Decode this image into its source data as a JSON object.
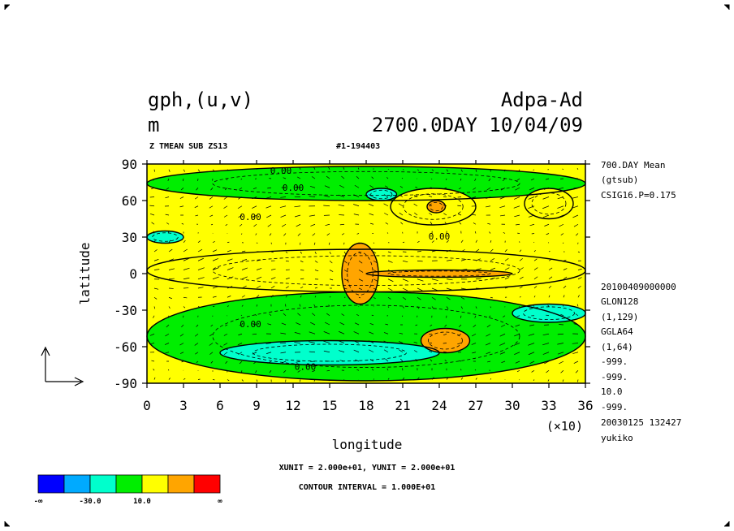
{
  "header": {
    "variable": "gph,(u,v)",
    "unit": "m",
    "experiment": "Adpa-Ad",
    "date_line": "2700.0DAY 10/04/09",
    "subtitle": "Z TMEAN SUB ZS13",
    "run_id": "#1-194403"
  },
  "side_info": {
    "top": [
      "700.DAY Mean",
      "(gtsub)",
      "CSIG16.P=0.175"
    ],
    "bottom": [
      "20100409000000",
      "GLON128",
      "(1,129)",
      "GGLA64",
      "(1,64)",
      "-999.",
      "-999.",
      "10.0",
      "-999.",
      "20030125 132427",
      "yukiko"
    ]
  },
  "footer": {
    "units_line": "XUNIT = 2.000e+01, YUNIT = 2.000e+01",
    "contour_line": "CONTOUR INTERVAL = 1.000E+01"
  },
  "colorbar": {
    "colors": [
      "#0000ff",
      "#00aaff",
      "#00ffcc",
      "#00ee00",
      "#ffff00",
      "#ffa500",
      "#ff0000"
    ],
    "labels": [
      "-∞",
      "-30.0",
      "10.0",
      "∞"
    ]
  },
  "chart_data": {
    "type": "heatmap",
    "xlabel": "longitude",
    "ylabel": "latitude",
    "x_scale_note": "(×10)",
    "xlim": [
      0,
      36
    ],
    "ylim": [
      -90,
      90
    ],
    "x_ticks": [
      0,
      3,
      6,
      9,
      12,
      15,
      18,
      21,
      24,
      27,
      30,
      33,
      36
    ],
    "y_ticks": [
      90,
      60,
      30,
      0,
      -30,
      -60,
      -90
    ],
    "contour_labels": [
      "0.00",
      "0.00",
      "0.00",
      "0.00",
      "0.00",
      "0.00"
    ],
    "levels": [
      "-20",
      "-10",
      "0",
      "10",
      "20"
    ],
    "level_colors": [
      "#00ffcc",
      "#00ee00",
      "#ffff00",
      "#ffff00",
      "#ffa500"
    ],
    "regions": [
      {
        "level": "-10",
        "lon": [
          0,
          36
        ],
        "lat": [
          60,
          88
        ]
      },
      {
        "level": "-10",
        "lon": [
          0,
          36
        ],
        "lat": [
          -88,
          -15
        ]
      },
      {
        "level": "-20",
        "lon": [
          0,
          3
        ],
        "lat": [
          25,
          35
        ]
      },
      {
        "level": "-20",
        "lon": [
          18,
          20.5
        ],
        "lat": [
          60,
          70
        ]
      },
      {
        "level": "-20",
        "lon": [
          6,
          24
        ],
        "lat": [
          -75,
          -55
        ]
      },
      {
        "level": "-20",
        "lon": [
          30,
          36
        ],
        "lat": [
          -40,
          -25
        ]
      },
      {
        "level": "0",
        "lon": [
          0,
          36
        ],
        "lat": [
          -15,
          20
        ]
      },
      {
        "level": "0",
        "lon": [
          20,
          27
        ],
        "lat": [
          40,
          70
        ]
      },
      {
        "level": "0",
        "lon": [
          31,
          35
        ],
        "lat": [
          45,
          70
        ]
      },
      {
        "level": "20",
        "lon": [
          16,
          19
        ],
        "lat": [
          -25,
          25
        ]
      },
      {
        "level": "20",
        "lon": [
          18,
          30
        ],
        "lat": [
          -3,
          3
        ]
      },
      {
        "level": "20",
        "lon": [
          22.5,
          26.5
        ],
        "lat": [
          -65,
          -45
        ]
      },
      {
        "level": "20",
        "lon": [
          23,
          24.5
        ],
        "lat": [
          50,
          60
        ]
      }
    ]
  }
}
